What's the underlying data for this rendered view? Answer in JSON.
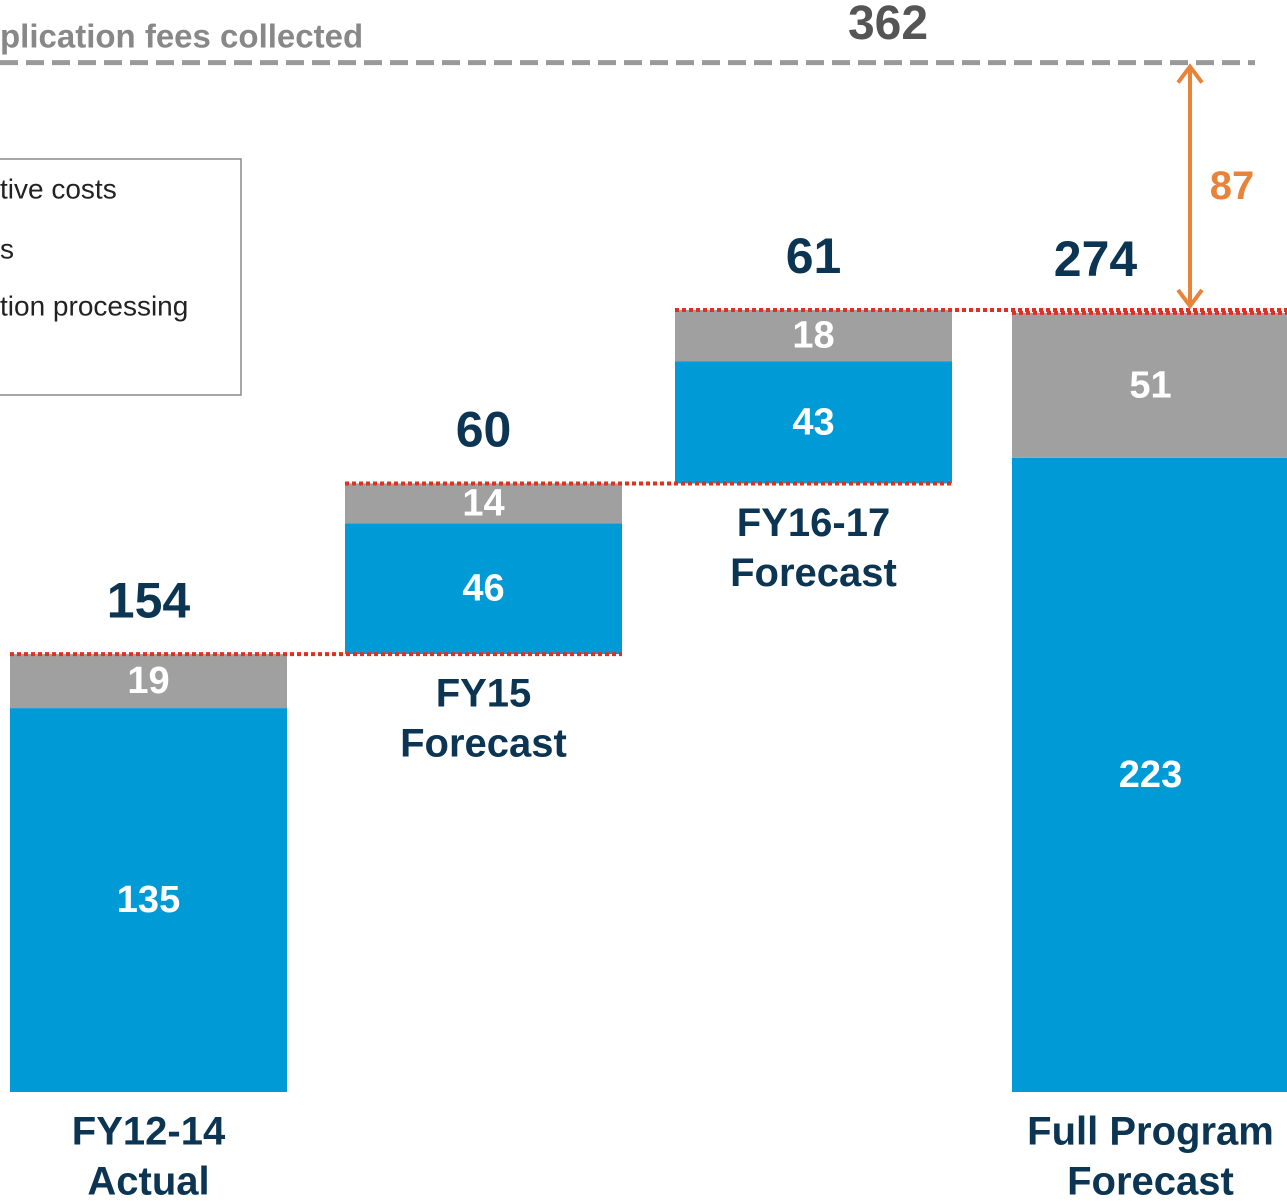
{
  "chart_data": {
    "type": "waterfall",
    "categories": [
      [
        "FY12-14",
        "Actual"
      ],
      [
        "FY15",
        "Forecast"
      ],
      [
        "FY16-17",
        "Forecast"
      ],
      [
        "Full Program",
        "Forecast"
      ]
    ],
    "series": [
      {
        "color": "#009bd6",
        "values": [
          135,
          46,
          43,
          223
        ]
      },
      {
        "color": "#a0a0a0",
        "values": [
          19,
          14,
          18,
          51
        ]
      }
    ],
    "totals": [
      154,
      60,
      61,
      274
    ],
    "total_column": 3,
    "reference": {
      "label": "plication fees collected",
      "value": 362
    },
    "gap": 87,
    "legend_entries": [
      "tive costs",
      "s",
      "tion processing"
    ],
    "ylim": [
      0,
      384
    ]
  }
}
